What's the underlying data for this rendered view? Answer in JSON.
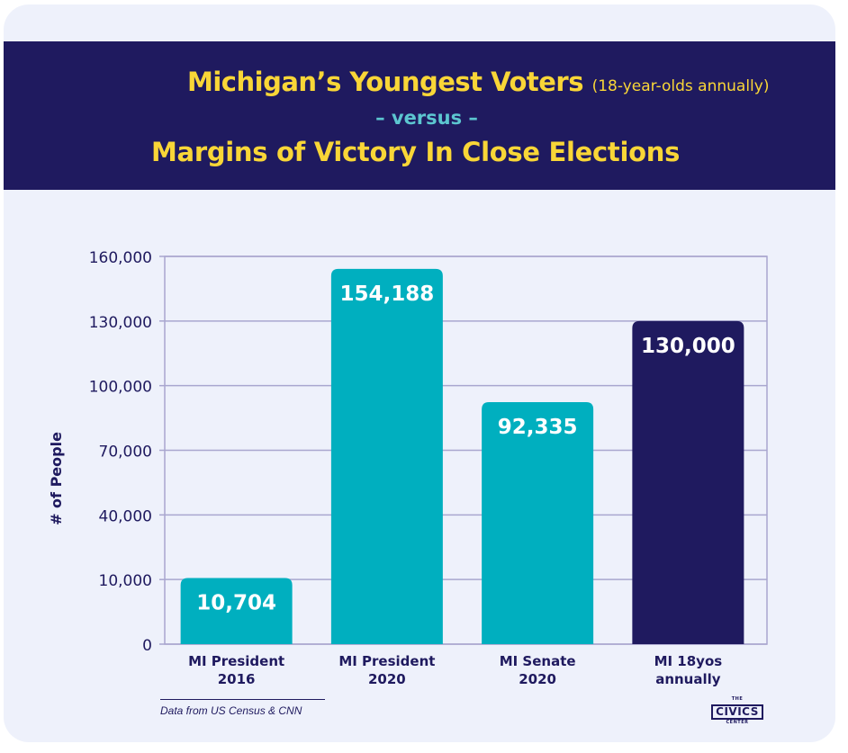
{
  "header": {
    "title_main": "Michigan’s Youngest Voters",
    "title_sub": "(18-year-olds annually)",
    "versus": "– versus –",
    "title_second": "Margins of Victory In Close Elections"
  },
  "footnote": "Data from US Census & CNN",
  "logo": {
    "top": "THE",
    "main": "CIVICS",
    "bottom": "CENTER"
  },
  "colors": {
    "header_bg": "#1f1a5f",
    "title_yellow": "#f9d637",
    "versus_teal": "#5cc6d0",
    "bar_teal": "#00afbf",
    "bar_navy": "#1f1a5f",
    "card_bg": "#eef1fb",
    "grid": "#a9a6cf"
  },
  "chart_data": {
    "type": "bar",
    "title": "Michigan’s Youngest Voters (18-year-olds annually) – versus – Margins of Victory In Close Elections",
    "xlabel": "",
    "ylabel": "# of People",
    "ylim": [
      0,
      160000
    ],
    "yticks": [
      0,
      10000,
      40000,
      70000,
      100000,
      130000,
      160000
    ],
    "ytick_labels": [
      "0",
      "10,000",
      "40,000",
      "70,000",
      "100,000",
      "130,000",
      "160,000"
    ],
    "grid": true,
    "categories": [
      [
        "MI President",
        "2016"
      ],
      [
        "MI President",
        "2020"
      ],
      [
        "MI Senate",
        "2020"
      ],
      [
        "MI 18yos",
        "annually"
      ]
    ],
    "values": [
      10704,
      154188,
      92335,
      130000
    ],
    "value_labels": [
      "10,704",
      "154,188",
      "92,335",
      "130,000"
    ],
    "bar_colors": [
      "#00afbf",
      "#00afbf",
      "#00afbf",
      "#1f1a5f"
    ]
  }
}
